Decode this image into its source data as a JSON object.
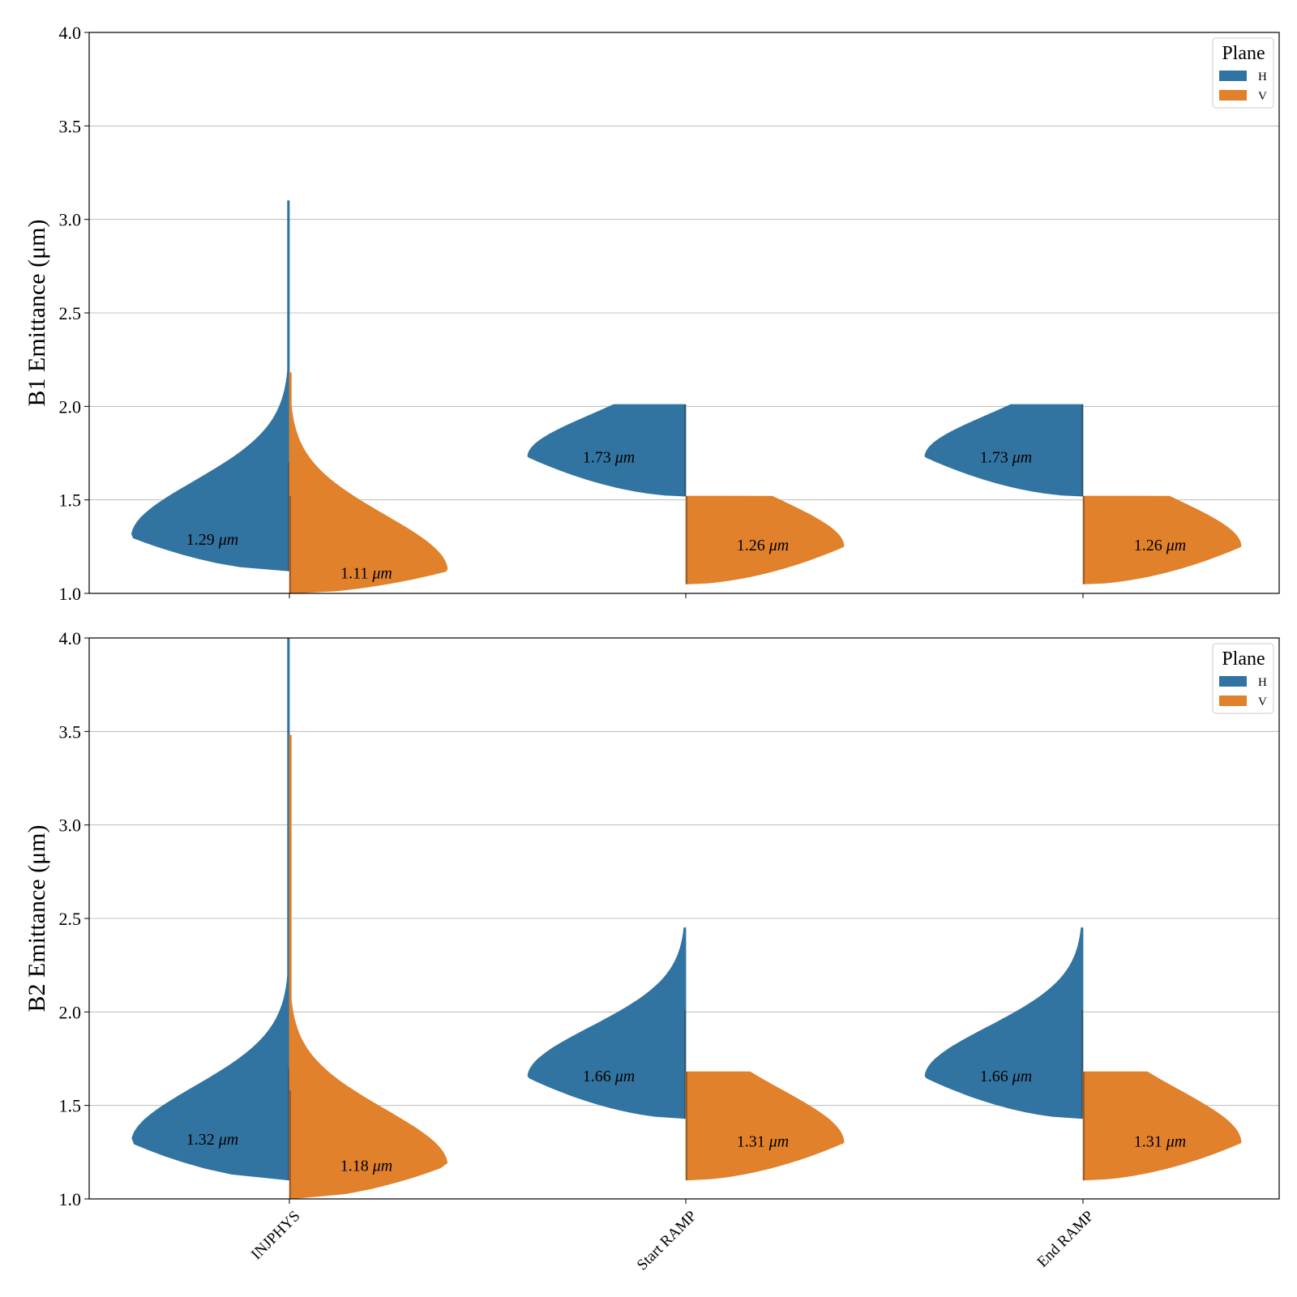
{
  "chart_data": [
    {
      "type": "violin",
      "ylabel": "B1 Emittance (μm)",
      "ylim": [
        1.0,
        4.0
      ],
      "yticks": [
        "1.0",
        "1.5",
        "2.0",
        "2.5",
        "3.0",
        "3.5",
        "4.0"
      ],
      "categories": [
        "INJPHYS",
        "Start RAMP",
        "End RAMP"
      ],
      "grid": true,
      "legend": {
        "title": "Plane",
        "position": "top-right",
        "entries": [
          "H",
          "V"
        ]
      },
      "series": [
        {
          "name": "H",
          "color": "#3274a1",
          "side": "left",
          "violins": [
            {
              "min": 1.12,
              "max": 3.1,
              "peak": 1.3,
              "peak_width": 0.4,
              "median": 1.29,
              "label": "1.29 μm"
            },
            {
              "min": 1.52,
              "max": 2.01,
              "peak": 1.73,
              "peak_width": 0.3,
              "median": 1.73,
              "label": "1.73 μm"
            },
            {
              "min": 1.52,
              "max": 2.01,
              "peak": 1.73,
              "peak_width": 0.3,
              "median": 1.73,
              "label": "1.73 μm"
            }
          ]
        },
        {
          "name": "V",
          "color": "#e1812c",
          "side": "right",
          "violins": [
            {
              "min": 1.0,
              "max": 2.18,
              "peak": 1.12,
              "peak_width": 0.4,
              "median": 1.11,
              "label": "1.11 μm"
            },
            {
              "min": 1.05,
              "max": 1.52,
              "peak": 1.25,
              "peak_width": 0.33,
              "median": 1.26,
              "label": "1.26 μm"
            },
            {
              "min": 1.05,
              "max": 1.52,
              "peak": 1.25,
              "peak_width": 0.33,
              "median": 1.26,
              "label": "1.26 μm"
            }
          ]
        }
      ]
    },
    {
      "type": "violin",
      "ylabel": "B2 Emittance (μm)",
      "ylim": [
        1.0,
        4.0
      ],
      "yticks": [
        "1.0",
        "1.5",
        "2.0",
        "2.5",
        "3.0",
        "3.5",
        "4.0"
      ],
      "categories": [
        "INJPHYS",
        "Start RAMP",
        "End RAMP"
      ],
      "grid": true,
      "legend": {
        "title": "Plane",
        "position": "top-right",
        "entries": [
          "H",
          "V"
        ]
      },
      "series": [
        {
          "name": "H",
          "color": "#3274a1",
          "side": "left",
          "violins": [
            {
              "min": 1.1,
              "max": 4.0,
              "peak": 1.3,
              "peak_width": 0.4,
              "median": 1.32,
              "label": "1.32 μm"
            },
            {
              "min": 1.43,
              "max": 2.45,
              "peak": 1.65,
              "peak_width": 0.36,
              "median": 1.66,
              "label": "1.66 μm"
            },
            {
              "min": 1.43,
              "max": 2.45,
              "peak": 1.65,
              "peak_width": 0.36,
              "median": 1.66,
              "label": "1.66 μm"
            }
          ]
        },
        {
          "name": "V",
          "color": "#e1812c",
          "side": "right",
          "violins": [
            {
              "min": 1.0,
              "max": 3.48,
              "peak": 1.18,
              "peak_width": 0.4,
              "median": 1.18,
              "label": "1.18 μm"
            },
            {
              "min": 1.1,
              "max": 1.68,
              "peak": 1.3,
              "peak_width": 0.38,
              "median": 1.31,
              "label": "1.31 μm"
            },
            {
              "min": 1.1,
              "max": 1.68,
              "peak": 1.3,
              "peak_width": 0.38,
              "median": 1.31,
              "label": "1.31 μm"
            }
          ]
        }
      ]
    }
  ]
}
